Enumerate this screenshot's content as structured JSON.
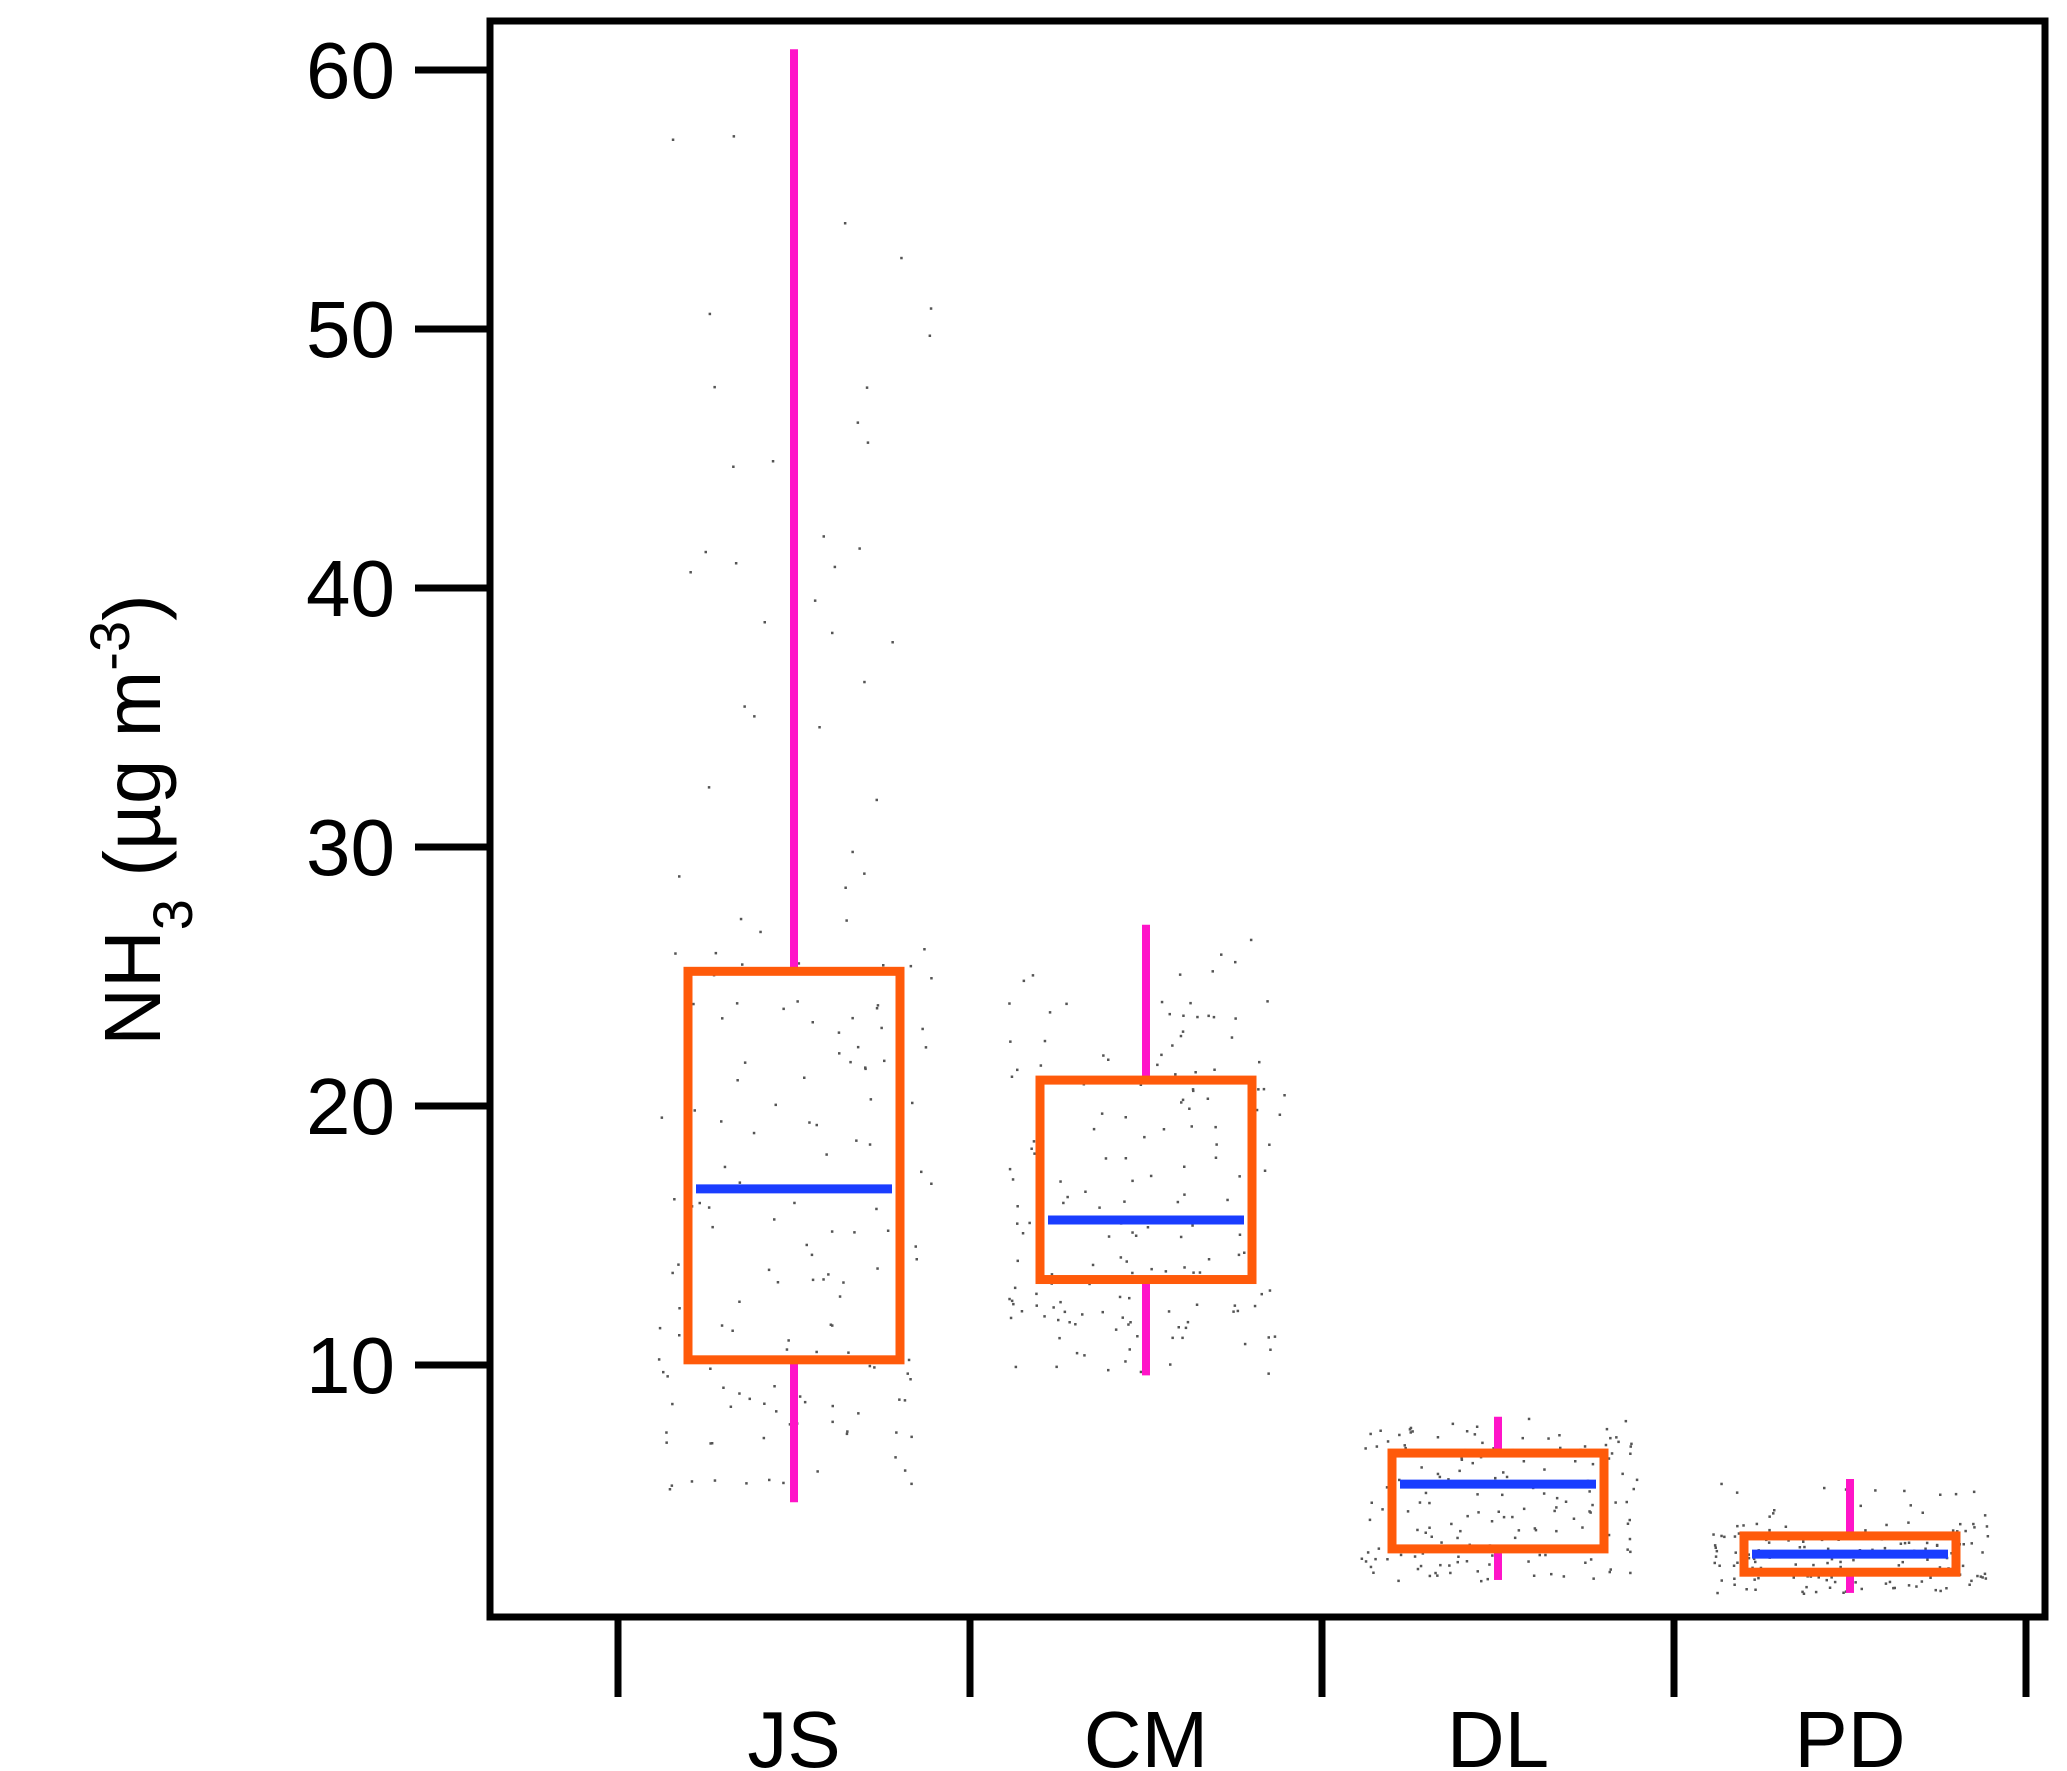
{
  "chart_data": {
    "type": "box",
    "categories": [
      "JS",
      "CM",
      "DL",
      "PD"
    ],
    "ylabel": {
      "main": "NH",
      "sub": "3",
      "unit_open": " (µg m",
      "sup": "-3",
      "unit_close": ")"
    },
    "ylim": [
      0,
      62
    ],
    "yticks": [
      10,
      20,
      30,
      40,
      50,
      60
    ],
    "grid": false,
    "boxes": [
      {
        "name": "JS",
        "whisker_low": 4.7,
        "q1": 10.2,
        "median": 16.8,
        "q3": 25.2,
        "whisker_high": 60.8
      },
      {
        "name": "CM",
        "whisker_low": 9.6,
        "q1": 13.3,
        "median": 15.6,
        "q3": 21.0,
        "whisker_high": 27.0
      },
      {
        "name": "DL",
        "whisker_low": 1.7,
        "q1": 2.9,
        "median": 5.4,
        "q3": 6.6,
        "whisker_high": 8.0
      },
      {
        "name": "PD",
        "whisker_low": 1.2,
        "q1": 2.0,
        "median": 2.7,
        "q3": 3.4,
        "whisker_high": 5.6
      }
    ],
    "colors": {
      "box": "#ff5a0a",
      "median": "#1a3dff",
      "whisker": "#ff14c8",
      "points": "#555555",
      "axis": "#000000"
    }
  }
}
